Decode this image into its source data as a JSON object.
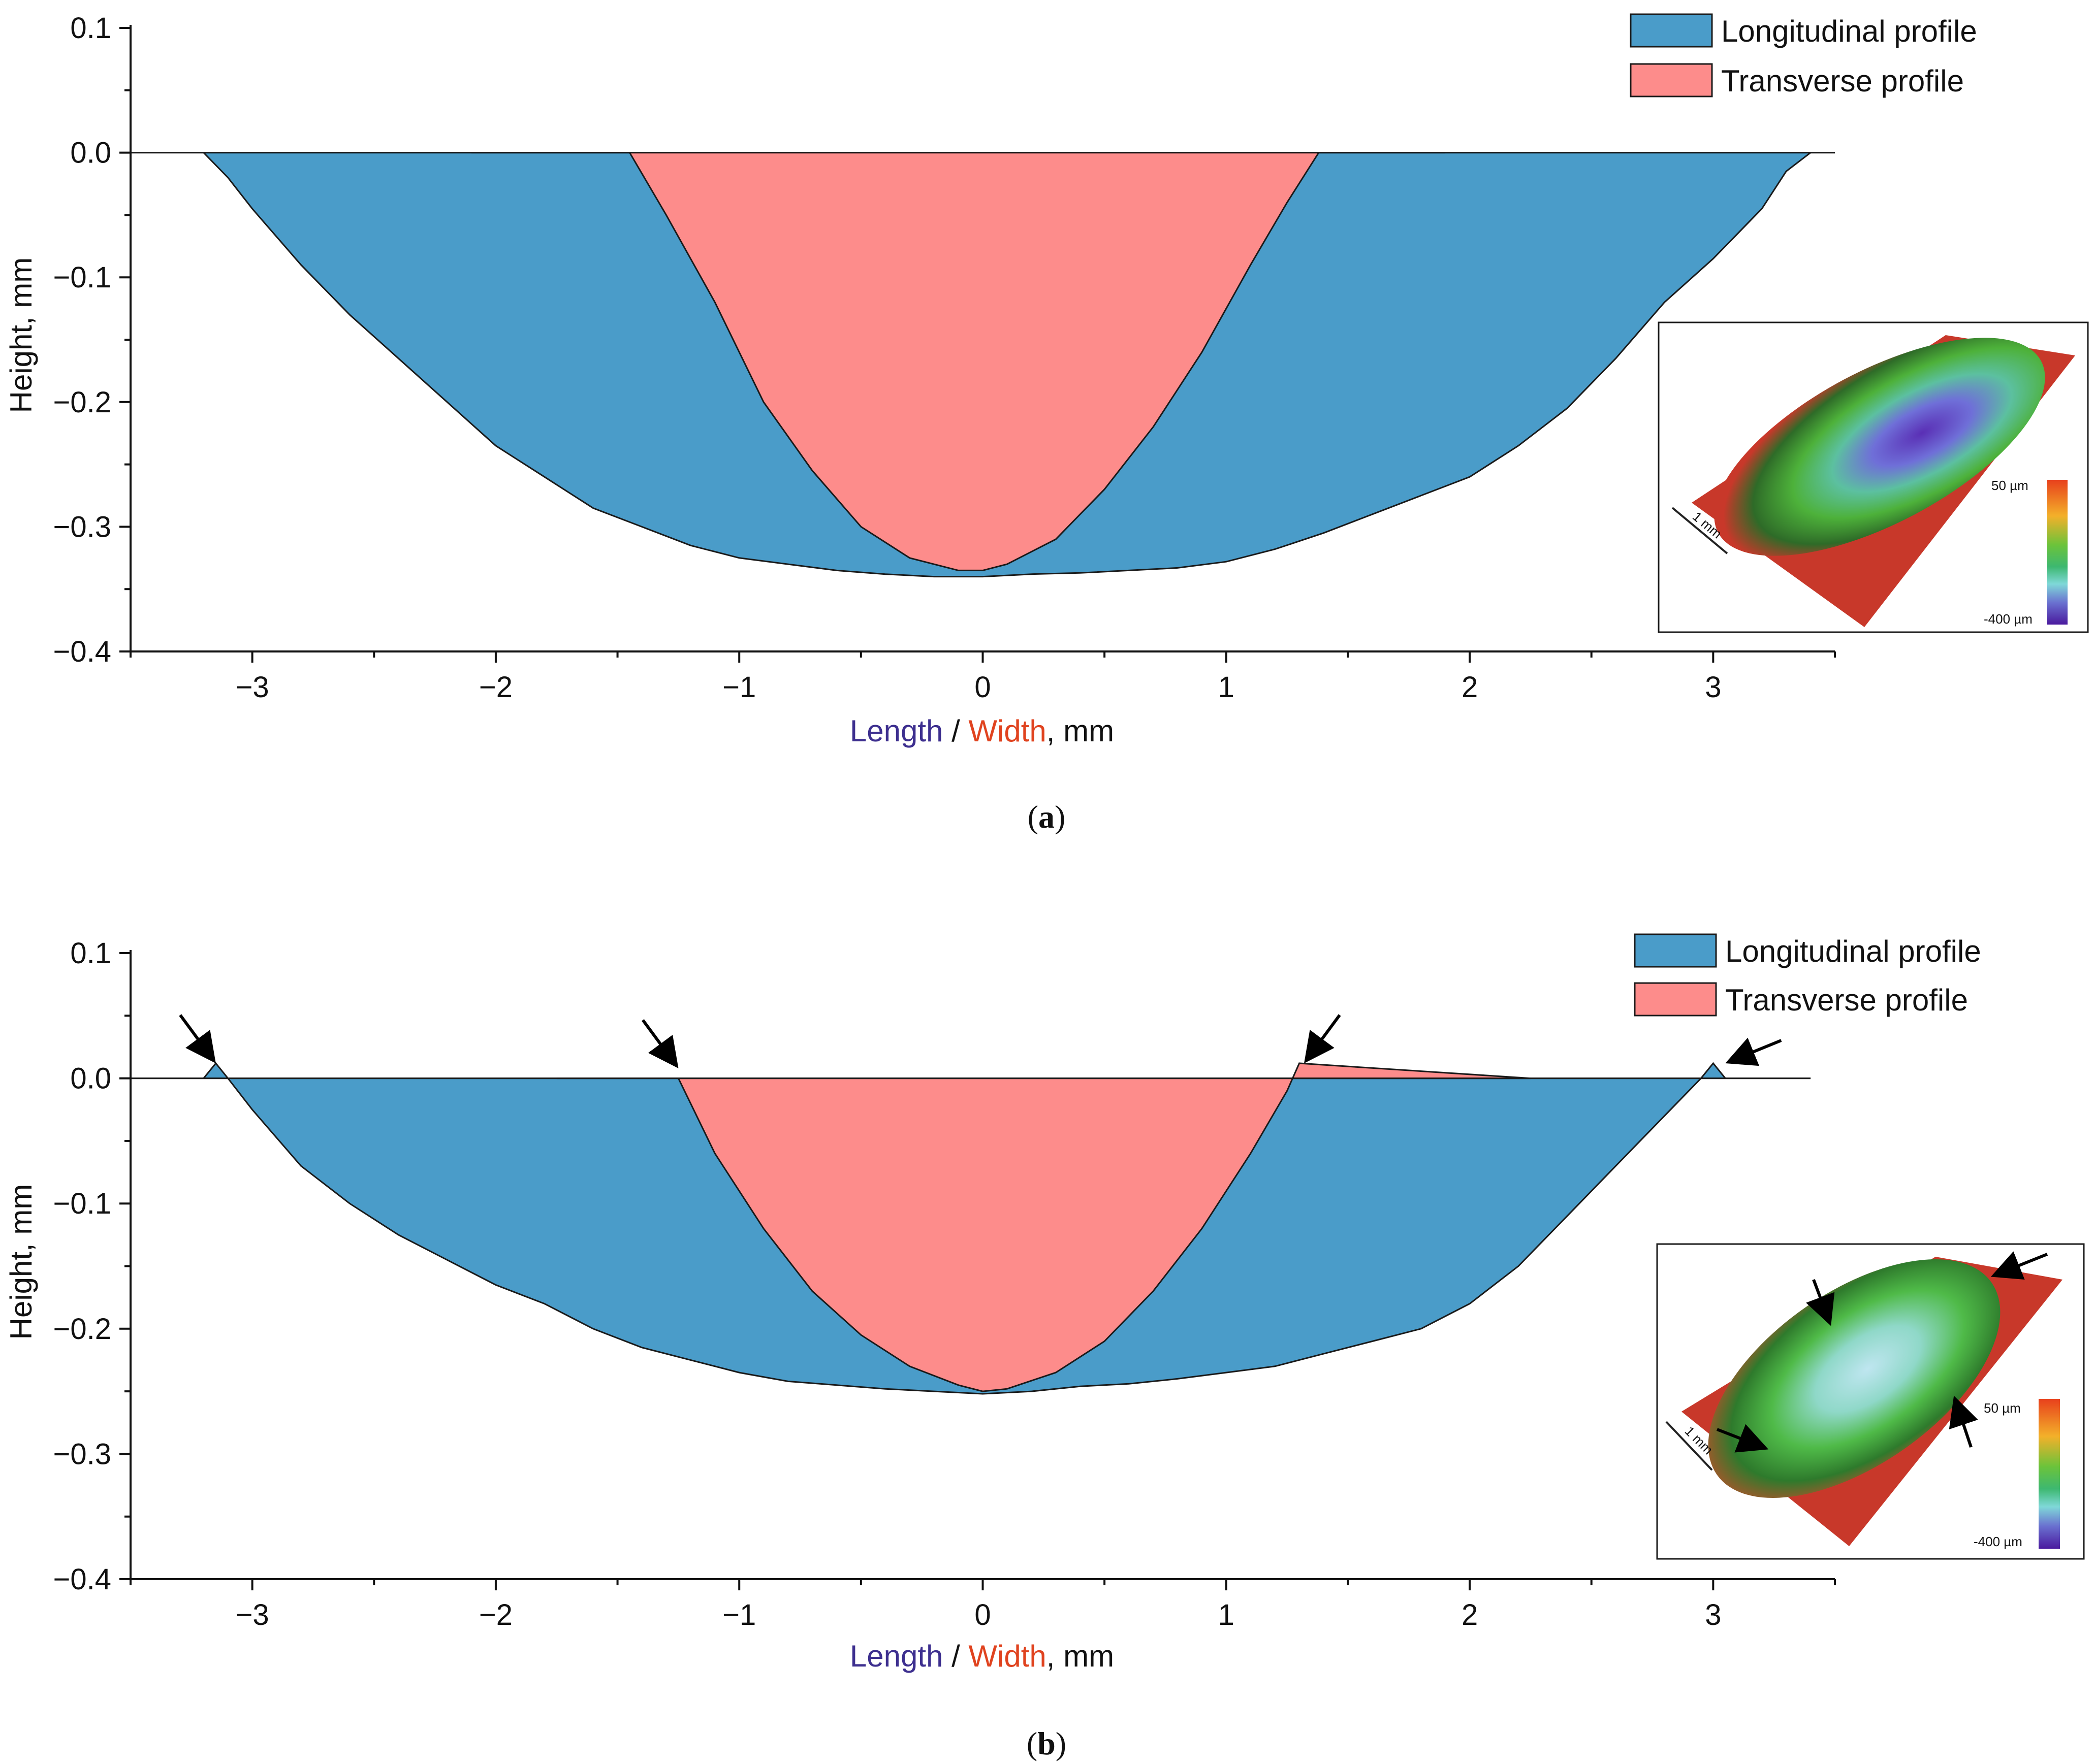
{
  "chart_data": [
    {
      "id": "a",
      "type": "area",
      "caption_label": "a",
      "xlabel_parts": [
        "Length",
        " / ",
        "Width",
        ", mm"
      ],
      "ylabel": "Height, mm",
      "xlim": [
        -3.5,
        3.5
      ],
      "ylim": [
        -0.4,
        0.1
      ],
      "x_ticks": [
        -3,
        -2,
        -1,
        0,
        1,
        2,
        3
      ],
      "y_ticks": [
        0.1,
        0.0,
        -0.1,
        -0.2,
        -0.3,
        -0.4
      ],
      "x_tick_labels": [
        "−3",
        "−2",
        "−1",
        "0",
        "1",
        "2",
        "3"
      ],
      "y_tick_labels": [
        "0.1",
        "0.0",
        "−0.1",
        "−0.2",
        "−0.3",
        "−0.4"
      ],
      "legend": [
        "Longitudinal profile",
        "Transverse profile"
      ],
      "legend_position": "top-right",
      "colors": {
        "longitudinal": "#4a9cc9",
        "transverse": "#fd8c8b",
        "length_word": "#3d2f8f",
        "width_word": "#e0431f"
      },
      "inset": {
        "scale_label": "1 mm",
        "color_max_label": "50 µm",
        "color_min_label": "-400 µm",
        "arrows": 0
      },
      "series": [
        {
          "name": "Longitudinal profile",
          "x": [
            -3.5,
            -3.2,
            -3.1,
            -3.0,
            -2.8,
            -2.6,
            -2.4,
            -2.2,
            -2.0,
            -1.8,
            -1.6,
            -1.4,
            -1.2,
            -1.0,
            -0.8,
            -0.6,
            -0.4,
            -0.2,
            0.0,
            0.2,
            0.4,
            0.6,
            0.8,
            1.0,
            1.2,
            1.4,
            1.6,
            1.8,
            2.0,
            2.2,
            2.4,
            2.6,
            2.8,
            3.0,
            3.2,
            3.3,
            3.4,
            3.5
          ],
          "y": [
            0.0,
            0.0,
            -0.02,
            -0.045,
            -0.09,
            -0.13,
            -0.165,
            -0.2,
            -0.235,
            -0.26,
            -0.285,
            -0.3,
            -0.315,
            -0.325,
            -0.33,
            -0.335,
            -0.338,
            -0.34,
            -0.34,
            -0.338,
            -0.337,
            -0.335,
            -0.333,
            -0.328,
            -0.318,
            -0.305,
            -0.29,
            -0.275,
            -0.26,
            -0.235,
            -0.205,
            -0.165,
            -0.12,
            -0.085,
            -0.045,
            -0.015,
            0.0,
            0.0
          ]
        },
        {
          "name": "Transverse profile",
          "x": [
            -2.1,
            -1.45,
            -1.3,
            -1.1,
            -0.9,
            -0.7,
            -0.5,
            -0.3,
            -0.1,
            0.0,
            0.1,
            0.3,
            0.5,
            0.7,
            0.9,
            1.1,
            1.25,
            1.38,
            1.9
          ],
          "y": [
            0.0,
            0.0,
            -0.05,
            -0.12,
            -0.2,
            -0.255,
            -0.3,
            -0.325,
            -0.335,
            -0.335,
            -0.33,
            -0.31,
            -0.27,
            -0.22,
            -0.16,
            -0.09,
            -0.04,
            0.0,
            0.0
          ]
        }
      ]
    },
    {
      "id": "b",
      "type": "area",
      "caption_label": "b",
      "xlabel_parts": [
        "Length",
        " / ",
        "Width",
        ", mm"
      ],
      "ylabel": "Height, mm",
      "xlim": [
        -3.5,
        3.5
      ],
      "ylim": [
        -0.4,
        0.1
      ],
      "x_ticks": [
        -3,
        -2,
        -1,
        0,
        1,
        2,
        3
      ],
      "y_ticks": [
        0.1,
        0.0,
        -0.1,
        -0.2,
        -0.3,
        -0.4
      ],
      "x_tick_labels": [
        "−3",
        "−2",
        "−1",
        "0",
        "1",
        "2",
        "3"
      ],
      "y_tick_labels": [
        "0.1",
        "0.0",
        "−0.1",
        "−0.2",
        "−0.3",
        "−0.4"
      ],
      "legend": [
        "Longitudinal profile",
        "Transverse profile"
      ],
      "legend_position": "top-right",
      "colors": {
        "longitudinal": "#4a9cc9",
        "transverse": "#fd8c8b",
        "length_word": "#3d2f8f",
        "width_word": "#e0431f"
      },
      "inset": {
        "scale_label": "1 mm",
        "color_max_label": "50 µm",
        "color_min_label": "-400 µm",
        "arrows": 4
      },
      "annotations": [
        {
          "type": "arrow",
          "x": -3.15,
          "y": 0.012,
          "from": "upper-left"
        },
        {
          "type": "arrow",
          "x": -1.25,
          "y": 0.008,
          "from": "upper-left"
        },
        {
          "type": "arrow",
          "x": 1.32,
          "y": 0.012,
          "from": "upper-right"
        },
        {
          "type": "arrow",
          "x": 3.05,
          "y": 0.012,
          "from": "right"
        }
      ],
      "series": [
        {
          "name": "Longitudinal profile",
          "x": [
            -3.5,
            -3.2,
            -3.15,
            -3.1,
            -3.0,
            -2.8,
            -2.6,
            -2.4,
            -2.2,
            -2.0,
            -1.8,
            -1.6,
            -1.4,
            -1.2,
            -1.0,
            -0.8,
            -0.6,
            -0.4,
            -0.2,
            0.0,
            0.2,
            0.4,
            0.6,
            0.8,
            1.0,
            1.2,
            1.4,
            1.6,
            1.8,
            2.0,
            2.2,
            2.4,
            2.6,
            2.8,
            2.95,
            3.0,
            3.05,
            3.4
          ],
          "y": [
            0.0,
            0.0,
            0.012,
            0.0,
            -0.025,
            -0.07,
            -0.1,
            -0.125,
            -0.145,
            -0.165,
            -0.18,
            -0.2,
            -0.215,
            -0.225,
            -0.235,
            -0.242,
            -0.245,
            -0.248,
            -0.25,
            -0.252,
            -0.25,
            -0.246,
            -0.244,
            -0.24,
            -0.235,
            -0.23,
            -0.22,
            -0.21,
            -0.2,
            -0.18,
            -0.15,
            -0.11,
            -0.07,
            -0.03,
            0.0,
            0.012,
            0.0,
            0.0
          ]
        },
        {
          "name": "Transverse profile",
          "x": [
            -1.75,
            -1.25,
            -1.1,
            -0.9,
            -0.7,
            -0.5,
            -0.3,
            -0.1,
            0.0,
            0.1,
            0.3,
            0.5,
            0.7,
            0.9,
            1.1,
            1.25,
            1.3,
            2.25
          ],
          "y": [
            0.0,
            0.0,
            -0.06,
            -0.12,
            -0.17,
            -0.205,
            -0.23,
            -0.245,
            -0.25,
            -0.248,
            -0.235,
            -0.21,
            -0.17,
            -0.12,
            -0.06,
            -0.01,
            0.012,
            0.0
          ]
        }
      ]
    }
  ]
}
